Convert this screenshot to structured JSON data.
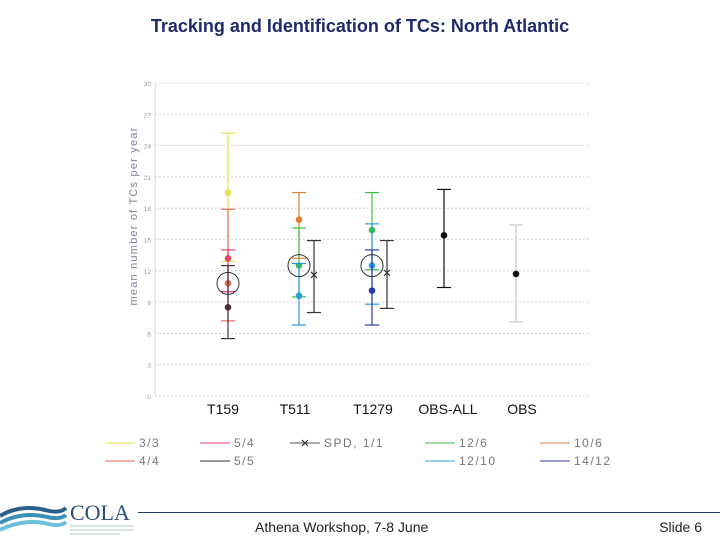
{
  "title": "Tracking and Identification of TCs: North Atlantic",
  "footer": {
    "event": "Athena Workshop, 7-8 June",
    "slide": "Slide 6",
    "logo_text": "COLA"
  },
  "colors": {
    "title": "#1f2a6b",
    "grid": "#b8b8b8",
    "axis": "#888888"
  },
  "chart_data": {
    "type": "scatter",
    "title": "",
    "xlabel": "",
    "ylabel": "mean number of TCs per year",
    "ylim": [
      0,
      30
    ],
    "yticks": [
      0,
      3,
      6,
      9,
      12,
      15,
      18,
      21,
      24,
      27,
      30
    ],
    "grid": true,
    "categories": [
      "T159",
      "T511",
      "T1279",
      "OBS-ALL",
      "OBS"
    ],
    "series": [
      {
        "name": "3/3",
        "color": "#e6e14b",
        "points": [
          {
            "category": "T159",
            "value": 19.5,
            "error": [
              12.9,
              25.2
            ]
          }
        ]
      },
      {
        "name": "4/4",
        "color": "#e86a55",
        "points": [
          {
            "category": "T159",
            "value": 10.8,
            "error": [
              7.2,
              17.9
            ]
          }
        ]
      },
      {
        "name": "5/4",
        "color": "#e8476b",
        "points": [
          {
            "category": "T159",
            "value": 13.2,
            "error": [
              10.0,
              14.0
            ]
          }
        ]
      },
      {
        "name": "5/5",
        "color": "#4a2a3a",
        "points": [
          {
            "category": "T159",
            "value": 8.5,
            "error": [
              5.5,
              12.5
            ]
          }
        ]
      },
      {
        "name": "SPD, 1/1",
        "color": "#333333",
        "points": [
          {
            "category": "T511",
            "value": 11.6,
            "error": [
              8.0,
              14.9
            ]
          },
          {
            "category": "T1279",
            "value": 11.8,
            "error": [
              8.4,
              14.9
            ]
          }
        ]
      },
      {
        "name": "10/6",
        "color": "#e08030",
        "points": [
          {
            "category": "T511",
            "value": 16.9,
            "error": [
              13.2,
              19.5
            ]
          }
        ]
      },
      {
        "name": "12/6",
        "color": "#3cc043",
        "points": [
          {
            "category": "T511",
            "value": 12.5,
            "error": [
              9.5,
              16.1
            ]
          },
          {
            "category": "T1279",
            "value": 15.9,
            "error": [
              12.1,
              19.5
            ]
          }
        ]
      },
      {
        "name": "12/10",
        "color": "#2a9de0",
        "points": [
          {
            "category": "T511",
            "value": 9.6,
            "error": [
              6.8,
              12.7
            ]
          },
          {
            "category": "T1279",
            "value": 12.5,
            "error": [
              8.8,
              16.5
            ]
          }
        ]
      },
      {
        "name": "14/12",
        "color": "#2a3ab0",
        "points": [
          {
            "category": "T1279",
            "value": 10.1,
            "error": [
              6.8,
              14.0
            ]
          }
        ]
      },
      {
        "name": "OBS-ALL",
        "color": "#111111",
        "points": [
          {
            "category": "OBS-ALL",
            "value": 15.4,
            "error": [
              10.4,
              19.8
            ]
          }
        ]
      },
      {
        "name": "OBS",
        "color": "#111111",
        "light_bar": true,
        "points": [
          {
            "category": "OBS",
            "value": 11.7,
            "error": [
              7.1,
              16.4
            ]
          }
        ]
      }
    ],
    "highlighted": [
      {
        "category": "T159",
        "series": "4/4"
      },
      {
        "category": "T511",
        "series": "12/6"
      },
      {
        "category": "T1279",
        "series": "12/10"
      }
    ],
    "legend": {
      "placement": "bottom",
      "rows": [
        [
          "3/3",
          "5/4",
          "SPD, 1/1",
          "12/6",
          "10/6"
        ],
        [
          "4/4",
          "5/5",
          "",
          "12/10",
          "14/12"
        ]
      ],
      "colors": {
        "3/3": "#e6e14b",
        "4/4": "#e86a55",
        "5/4": "#e8476b",
        "5/5": "#4a2a3a",
        "SPD, 1/1": "#333333",
        "12/6": "#3cc043",
        "12/10": "#2a9de0",
        "10/6": "#e08030",
        "14/12": "#2a3ab0"
      }
    }
  }
}
